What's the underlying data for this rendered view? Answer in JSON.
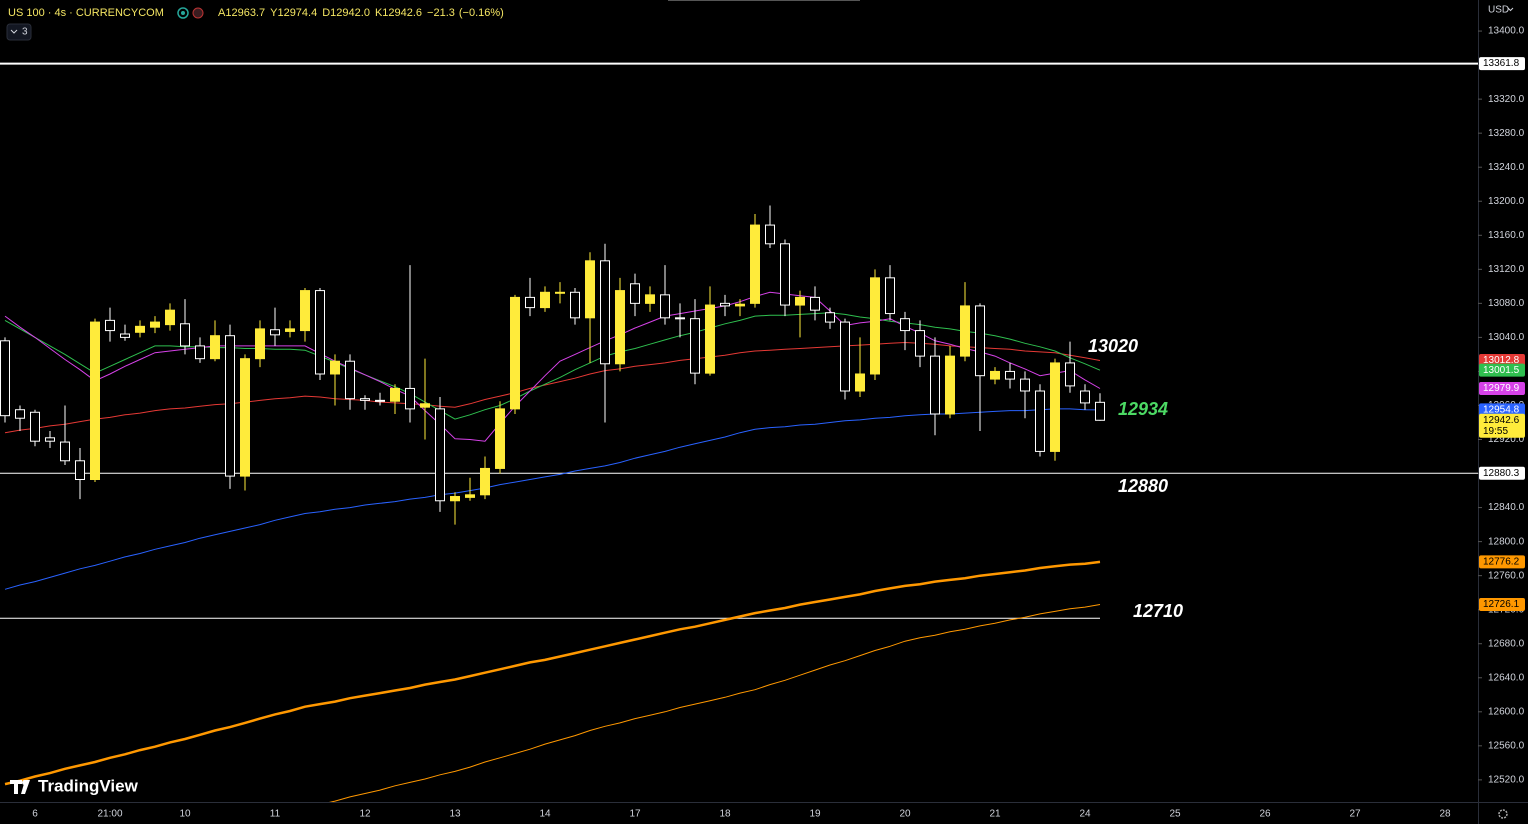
{
  "chart_data": {
    "type": "candlestick",
    "title": "US 100 · 4s · CURRENCYCOM",
    "ohlc_header": [
      {
        "prefix": "A",
        "value": 12963.7
      },
      {
        "prefix": "Y",
        "value": 12974.4
      },
      {
        "prefix": "D",
        "value": 12942,
        "label": "12942.0"
      },
      {
        "prefix": "K",
        "value": 12942.6
      }
    ],
    "change": {
      "value": -21.3,
      "label": "−21.3"
    },
    "change_pct": {
      "value": -0.16,
      "label": "(−0.16%)"
    },
    "indicators": 3,
    "currency": "USD",
    "watermark": "TradingView",
    "countdown": "19:55",
    "categories": [
      null,
      null,
      "6",
      null,
      null,
      null,
      null,
      "21:00",
      null,
      null,
      null,
      null,
      "10",
      null,
      null,
      null,
      null,
      null,
      "11",
      null,
      null,
      null,
      null,
      null,
      "12",
      null,
      null,
      null,
      null,
      null,
      "13",
      null,
      null,
      null,
      null,
      null,
      "14",
      null,
      null,
      null,
      null,
      null,
      "17",
      null,
      null,
      null,
      null,
      null,
      "18",
      null,
      null,
      null,
      null,
      null,
      "19",
      null,
      null,
      null,
      null,
      null,
      "20",
      null,
      null,
      null,
      null,
      null,
      "21",
      null,
      null,
      null,
      null,
      null,
      "24",
      null,
      null,
      null,
      null,
      null,
      "25",
      null,
      null,
      null,
      null,
      null,
      "26",
      null,
      null,
      null,
      null,
      null,
      "27",
      null,
      null,
      null,
      null,
      null,
      "28",
      null
    ],
    "open": [
      13036,
      12955,
      12952,
      12922,
      12917,
      12895,
      12873,
      13060,
      13044,
      13046,
      13052,
      13055,
      13056,
      13030,
      13015,
      13042,
      12877,
      13015,
      13049,
      13047,
      13048,
      13095,
      12997,
      13012,
      12968,
      12966,
      12965,
      12980,
      12958,
      12956,
      12848,
      12852,
      12855,
      12886,
      12956,
      13087,
      13075,
      13092,
      13093,
      13063,
      13130,
      13009,
      13103,
      13080,
      13090,
      13063,
      13062,
      12998,
      13080,
      13077,
      13080,
      13172,
      13150,
      13078,
      13087,
      13069,
      13058,
      12977,
      12997,
      13110,
      13062,
      13048,
      13018,
      12950,
      13018,
      13077,
      12991,
      13000,
      12991,
      12977,
      12906,
      13010,
      12977,
      12963.7,
      null,
      null,
      null,
      null,
      null,
      null,
      null,
      null,
      null,
      null,
      null,
      null,
      null,
      null,
      null,
      null,
      null,
      null,
      null,
      null,
      null,
      null,
      null,
      null
    ],
    "high": [
      13040,
      12960,
      12955,
      12930,
      12960,
      12910,
      13062,
      13075,
      13055,
      13060,
      13065,
      13080,
      13085,
      13040,
      13060,
      13055,
      13020,
      13060,
      13075,
      13060,
      13098,
      13098,
      13020,
      13020,
      12972,
      12975,
      12985,
      13125,
      13015,
      12970,
      12858,
      12875,
      12900,
      12965,
      13090,
      13110,
      13100,
      13105,
      13098,
      13140,
      13150,
      13110,
      13115,
      13100,
      13125,
      13080,
      13085,
      13100,
      13090,
      13085,
      13185,
      13195,
      13155,
      13095,
      13100,
      13075,
      13062,
      13040,
      13120,
      13125,
      13070,
      13060,
      13040,
      13030,
      13105,
      13080,
      13005,
      13010,
      13000,
      12985,
      13015,
      13035,
      12985,
      12974.4,
      null,
      null,
      null,
      null,
      null,
      null,
      null,
      null,
      null,
      null,
      null,
      null,
      null,
      null,
      null,
      null,
      null,
      null,
      null,
      null,
      null,
      null,
      null,
      null
    ],
    "low": [
      12940,
      12930,
      12912,
      12910,
      12890,
      12850,
      12870,
      13035,
      13036,
      13040,
      13045,
      13048,
      13020,
      13010,
      13012,
      12862,
      12860,
      13005,
      13030,
      13040,
      13035,
      12990,
      12960,
      12955,
      12955,
      12960,
      12950,
      12940,
      12920,
      12835,
      12820,
      12848,
      12850,
      12880,
      12950,
      13065,
      13070,
      13080,
      13055,
      13010,
      12940,
      13000,
      13065,
      13070,
      13055,
      13040,
      12985,
      12995,
      13065,
      13065,
      13075,
      13145,
      13065,
      13040,
      13060,
      13050,
      12967,
      12970,
      12990,
      13060,
      13025,
      13005,
      12925,
      12945,
      13012,
      12930,
      12985,
      12980,
      12945,
      12900,
      12895,
      12975,
      12955,
      12942,
      null,
      null,
      null,
      null,
      null,
      null,
      null,
      null,
      null,
      null,
      null,
      null,
      null,
      null,
      null,
      null,
      null,
      null,
      null,
      null,
      null,
      null,
      null,
      null
    ],
    "close": [
      12948,
      12945,
      12918,
      12918,
      12895,
      12873,
      13058,
      13048,
      13040,
      13053,
      13058,
      13072,
      13030,
      13015,
      13042,
      12877,
      13015,
      13050,
      13043,
      13050,
      13095,
      12997,
      13012,
      12968,
      12966,
      12965,
      12980,
      12956,
      12962,
      12848,
      12853,
      12855,
      12886,
      12956,
      13087,
      13075,
      13093,
      13093,
      13063,
      13130,
      13009,
      13095,
      13080,
      13090,
      13063,
      13062,
      12998,
      13078,
      13077,
      13079,
      13172,
      13150,
      13078,
      13087,
      13072,
      13058,
      12977,
      12997,
      13110,
      13068,
      13048,
      13018,
      12950,
      13018,
      13077,
      12995,
      13000,
      12991,
      12977,
      12906,
      13010,
      12983,
      12963,
      12942.6,
      null,
      null,
      null,
      null,
      null,
      null,
      null,
      null,
      null,
      null,
      null,
      null,
      null,
      null,
      null,
      null,
      null,
      null,
      null,
      null,
      null,
      null,
      null,
      null
    ],
    "up_color": "#ffeb3b",
    "down_color": "#000000",
    "down_border": "#ffffff",
    "series": [
      {
        "color": "#e53935",
        "width": 1,
        "values": [
          12928,
          12931,
          12933,
          12936,
          12938,
          12941,
          12944,
          12946,
          12949,
          12951,
          12954,
          12956,
          12957,
          12959,
          12961,
          12962,
          12964,
          12966,
          12968,
          12969,
          12971,
          12970,
          12968,
          12967,
          12966,
          12964,
          12963,
          12962,
          12961,
          12959,
          12958,
          12962,
          12967,
          12971,
          12975,
          12980,
          12984,
          12988,
          12992,
          12997,
          13001,
          13003,
          13006,
          13008,
          13010,
          13013,
          13015,
          13017,
          13019,
          13022,
          13024,
          13025,
          13026,
          13027,
          13028,
          13029,
          13030,
          13031,
          13032,
          13033,
          13034,
          13033,
          13032,
          13030,
          13029,
          13028,
          13027,
          13026,
          13024,
          13023,
          13022,
          13019,
          13016,
          13012.8,
          null,
          null,
          null,
          null,
          null,
          null,
          null,
          null,
          null,
          null,
          null,
          null,
          null,
          null,
          null,
          null,
          null,
          null,
          null,
          null,
          null,
          null,
          null,
          null
        ]
      },
      {
        "color": "#2fbf4f",
        "width": 1,
        "values": [
          13060,
          13050,
          13040,
          13030,
          13020,
          13009,
          12998,
          13006,
          13014,
          13022,
          13030,
          13030,
          13029,
          13029,
          13028,
          13028,
          13027,
          13027,
          13026,
          13026,
          13025,
          13018,
          13011,
          13003,
          12996,
          12989,
          12982,
          12974,
          12964,
          12954,
          12944,
          12949,
          12955,
          12960,
          12968,
          12977,
          12985,
          12993,
          13002,
          13010,
          13018,
          13023,
          13027,
          13032,
          13037,
          13042,
          13046,
          13051,
          13056,
          13060,
          13065,
          13066,
          13066,
          13067,
          13068,
          13069,
          13067,
          13064,
          13062,
          13059,
          13057,
          13055,
          13052,
          13050,
          13047,
          13045,
          13042,
          13038,
          13033,
          13029,
          13024,
          13016,
          13009,
          13001.5,
          null,
          null,
          null,
          null,
          null,
          null,
          null,
          null,
          null,
          null,
          null,
          null,
          null,
          null,
          null,
          null,
          null,
          null,
          null,
          null,
          null,
          null,
          null,
          null
        ]
      },
      {
        "color": "#d642e8",
        "width": 1,
        "values": [
          13065,
          13052,
          13040,
          13027,
          13014,
          13002,
          12989,
          12997,
          13006,
          13014,
          13022,
          13024,
          13026,
          13028,
          13030,
          13030,
          13030,
          13030,
          13030,
          13030,
          13030,
          13021,
          13012,
          13004,
          12996,
          12988,
          12979,
          12971,
          12954,
          12938,
          12921,
          12920,
          12918,
          12939,
          12959,
          12977,
          12995,
          13012,
          13020,
          13028,
          13036,
          13043,
          13051,
          13058,
          13065,
          13068,
          13071,
          13074,
          13077,
          13082,
          13088,
          13093,
          13091,
          13089,
          13087,
          13071,
          13054,
          13057,
          13059,
          13062,
          13053,
          13045,
          13036,
          13032,
          13027,
          13023,
          13018,
          13010,
          13003,
          12995,
          12998,
          13001,
          12990,
          12979.9,
          null,
          null,
          null,
          null,
          null,
          null,
          null,
          null,
          null,
          null,
          null,
          null,
          null,
          null,
          null,
          null,
          null,
          null,
          null,
          null,
          null,
          null,
          null,
          null
        ]
      },
      {
        "color": "#2962ff",
        "width": 1,
        "values": [
          12744,
          12749,
          12753,
          12758,
          12763,
          12768,
          12772,
          12777,
          12782,
          12786,
          12791,
          12795,
          12799,
          12804,
          12808,
          12812,
          12816,
          12820,
          12825,
          12829,
          12833,
          12835,
          12838,
          12840,
          12843,
          12845,
          12847,
          12850,
          12852,
          12855,
          12857,
          12860,
          12863,
          12867,
          12870,
          12873,
          12876,
          12879,
          12883,
          12886,
          12889,
          12893,
          12898,
          12902,
          12906,
          12911,
          12915,
          12919,
          12923,
          12928,
          12932,
          12934,
          12935,
          12937,
          12938,
          12940,
          12942,
          12943,
          12945,
          12946,
          12948,
          12949,
          12950,
          12950,
          12951,
          12952,
          12953,
          12954,
          12954,
          12955,
          12956,
          12956,
          12955,
          12954.8,
          null,
          null,
          null,
          null,
          null,
          null,
          null,
          null,
          null,
          null,
          null,
          null,
          null,
          null,
          null,
          null,
          null,
          null,
          null,
          null,
          null,
          null,
          null,
          null
        ]
      },
      {
        "color": "#ff9800",
        "width": 2.5,
        "values": [
          12515,
          12519,
          12524,
          12528,
          12533,
          12537,
          12541,
          12546,
          12550,
          12555,
          12559,
          12564,
          12568,
          12573,
          12578,
          12582,
          12587,
          12592,
          12597,
          12601,
          12606,
          12609,
          12612,
          12616,
          12619,
          12622,
          12625,
          12628,
          12632,
          12635,
          12638,
          12642,
          12646,
          12650,
          12654,
          12658,
          12661,
          12665,
          12669,
          12673,
          12677,
          12681,
          12685,
          12689,
          12693,
          12697,
          12700,
          12704,
          12708,
          12712,
          12716,
          12719,
          12722,
          12726,
          12729,
          12732,
          12735,
          12738,
          12742,
          12745,
          12748,
          12750,
          12753,
          12755,
          12757,
          12760,
          12762,
          12764,
          12766,
          12769,
          12771,
          12773,
          12774,
          12776.2,
          null,
          null,
          null,
          null,
          null,
          null,
          null,
          null,
          null,
          null,
          null,
          null,
          null,
          null,
          null,
          null,
          null,
          null,
          null,
          null,
          null,
          null,
          null,
          null
        ]
      },
      {
        "color": "#ff9800",
        "width": 1,
        "values": [
          null,
          null,
          null,
          null,
          null,
          null,
          null,
          null,
          null,
          null,
          null,
          null,
          null,
          null,
          null,
          null,
          null,
          null,
          null,
          null,
          null,
          12491,
          12495,
          12500,
          12504,
          12508,
          12513,
          12517,
          12521,
          12526,
          12530,
          12535,
          12541,
          12546,
          12551,
          12556,
          12562,
          12567,
          12572,
          12578,
          12583,
          12587,
          12592,
          12596,
          12600,
          12605,
          12609,
          12613,
          12617,
          12622,
          12626,
          12632,
          12637,
          12643,
          12649,
          12655,
          12660,
          12666,
          12672,
          12677,
          12683,
          12687,
          12690,
          12694,
          12697,
          12701,
          12704,
          12708,
          12711,
          12715,
          12718,
          12721,
          12723,
          12726.1,
          null,
          null,
          null,
          null,
          null,
          null,
          null,
          null,
          null,
          null,
          null,
          null,
          null,
          null,
          null,
          null,
          null,
          null,
          null,
          null,
          null,
          null,
          null,
          null
        ]
      }
    ],
    "hlines": [
      {
        "value": 13361.8,
        "color": "#ffffff",
        "width": 2
      },
      {
        "value": 12880.3,
        "color": "#ffffff",
        "width": 1
      }
    ],
    "annotations": [
      {
        "value": 13020,
        "color": "#ffffff"
      },
      {
        "value": 12934,
        "color": "#4cd964"
      },
      {
        "value": 12880,
        "color": "#ffffff"
      },
      {
        "value": 12710,
        "color": "#ffffff",
        "line": true
      }
    ],
    "ylim": [
      12494,
      13436.5
    ],
    "yticks": [
      {
        "value": 13400,
        "label": "13400.0"
      },
      {
        "value": 13360,
        "label": "13360.0"
      },
      {
        "value": 13320,
        "label": "13320.0"
      },
      {
        "value": 13280,
        "label": "13280.0"
      },
      {
        "value": 13240,
        "label": "13240.0"
      },
      {
        "value": 13200,
        "label": "13200.0"
      },
      {
        "value": 13160,
        "label": "13160.0"
      },
      {
        "value": 13120,
        "label": "13120.0"
      },
      {
        "value": 13080,
        "label": "13080.0"
      },
      {
        "value": 13040,
        "label": "13040.0"
      },
      {
        "value": 13000,
        "label": "13000.0"
      },
      {
        "value": 12960,
        "label": "12960.0"
      },
      {
        "value": 12920,
        "label": "12920.0"
      },
      {
        "value": 12880,
        "label": "12880.0"
      },
      {
        "value": 12840,
        "label": "12840.0"
      },
      {
        "value": 12800,
        "label": "12800.0"
      },
      {
        "value": 12760,
        "label": "12760.0"
      },
      {
        "value": 12720,
        "label": "12720.0"
      },
      {
        "value": 12680,
        "label": "12680.0"
      },
      {
        "value": 12640,
        "label": "12640.0"
      },
      {
        "value": 12600,
        "label": "12600.0"
      },
      {
        "value": 12560,
        "label": "12560.0"
      },
      {
        "value": 12520,
        "label": "12520.0"
      }
    ],
    "grid": false
  }
}
